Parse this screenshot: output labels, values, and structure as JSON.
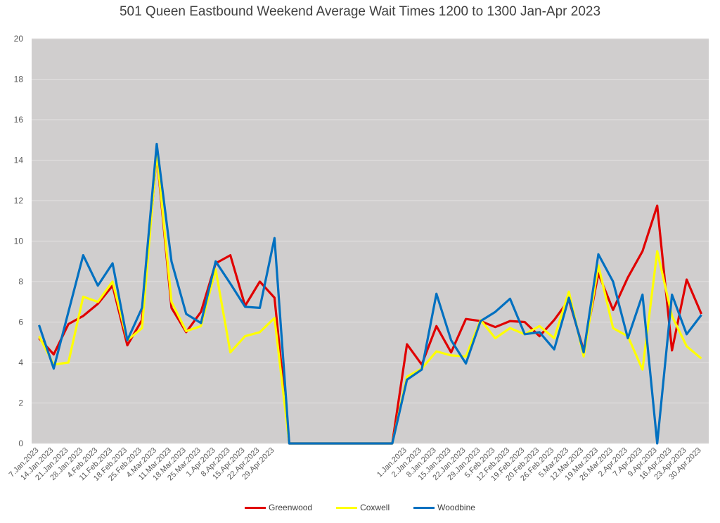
{
  "chart_data": {
    "type": "line",
    "title": "501 Queen Eastbound Weekend Average Wait Times 1200 to 1300 Jan-Apr 2023",
    "xlabel": "",
    "ylabel": "",
    "ylim": [
      0,
      20
    ],
    "yticks": [
      "0",
      "2",
      "4",
      "6",
      "8",
      "10",
      "12",
      "14",
      "16",
      "18",
      "20"
    ],
    "grid": true,
    "legend_position": "bottom",
    "plot_background": "#d0cece",
    "categories": [
      "7.Jan.2023",
      "14.Jan.2023",
      "21.Jan.2023",
      "28.Jan.2023",
      "4.Feb.2023",
      "11.Feb.2023",
      "18.Feb.2023",
      "25.Feb.2023",
      "4.Mar.2023",
      "11.Mar.2023",
      "18.Mar.2023",
      "25.Mar.2023",
      "1.Apr.2023",
      "8.Apr.2023",
      "15.Apr.2023",
      "22.Apr.2023",
      "29.Apr.2023",
      "",
      "",
      "",
      "",
      "",
      "",
      "",
      "",
      "1.Jan.2023",
      "2.Jan.2023",
      "8.Jan.2023",
      "15.Jan.2023",
      "22.Jan.2023",
      "29.Jan.2023",
      "5.Feb.2023",
      "12.Feb.2023",
      "19.Feb.2023",
      "20.Feb.2023",
      "26.Feb.2023",
      "5.Mar.2023",
      "12.Mar.2023",
      "19.Mar.2023",
      "26.Mar.2023",
      "2.Apr.2023",
      "7.Apr.2023",
      "9.Apr.2023",
      "16.Apr.2023",
      "23.Apr.2023",
      "30.Apr.2023"
    ],
    "series": [
      {
        "name": "Greenwood",
        "color": "#e00000",
        "values": [
          5.2,
          4.4,
          5.9,
          6.3,
          6.9,
          7.8,
          4.85,
          6.1,
          14.3,
          6.7,
          5.5,
          6.5,
          8.9,
          9.3,
          6.8,
          8.0,
          7.2,
          0,
          0,
          0,
          0,
          0,
          0,
          0,
          0,
          4.9,
          3.9,
          5.8,
          4.5,
          6.15,
          6.05,
          5.75,
          6.05,
          6.0,
          5.3,
          6.1,
          7.1,
          4.6,
          8.4,
          6.6,
          8.2,
          9.5,
          11.75,
          4.6,
          8.1,
          6.4
        ]
      },
      {
        "name": "Coxwell",
        "color": "#ffff00",
        "values": [
          5.3,
          3.9,
          4.0,
          7.25,
          7.0,
          8.0,
          5.1,
          5.7,
          14.4,
          7.0,
          5.55,
          5.8,
          8.6,
          4.5,
          5.3,
          5.5,
          6.2,
          0,
          0,
          0,
          0,
          0,
          0,
          0,
          0,
          3.3,
          3.7,
          4.55,
          4.35,
          4.3,
          6.1,
          5.2,
          5.7,
          5.4,
          5.8,
          5.2,
          7.5,
          4.3,
          8.8,
          5.7,
          5.3,
          3.65,
          9.5,
          6.3,
          4.8,
          4.2
        ]
      },
      {
        "name": "Woodbine",
        "color": "#0070c0",
        "values": [
          5.85,
          3.7,
          6.5,
          9.3,
          7.8,
          8.9,
          5.1,
          6.7,
          14.8,
          9.0,
          6.4,
          5.95,
          9.0,
          7.9,
          6.75,
          6.7,
          10.15,
          0,
          0,
          0,
          0,
          0,
          0,
          0,
          0,
          3.15,
          3.65,
          7.4,
          5.1,
          3.95,
          6.05,
          6.5,
          7.15,
          5.4,
          5.5,
          4.65,
          7.2,
          4.5,
          9.35,
          8.0,
          5.2,
          7.35,
          0.0,
          7.35,
          5.4,
          6.35
        ]
      }
    ]
  }
}
